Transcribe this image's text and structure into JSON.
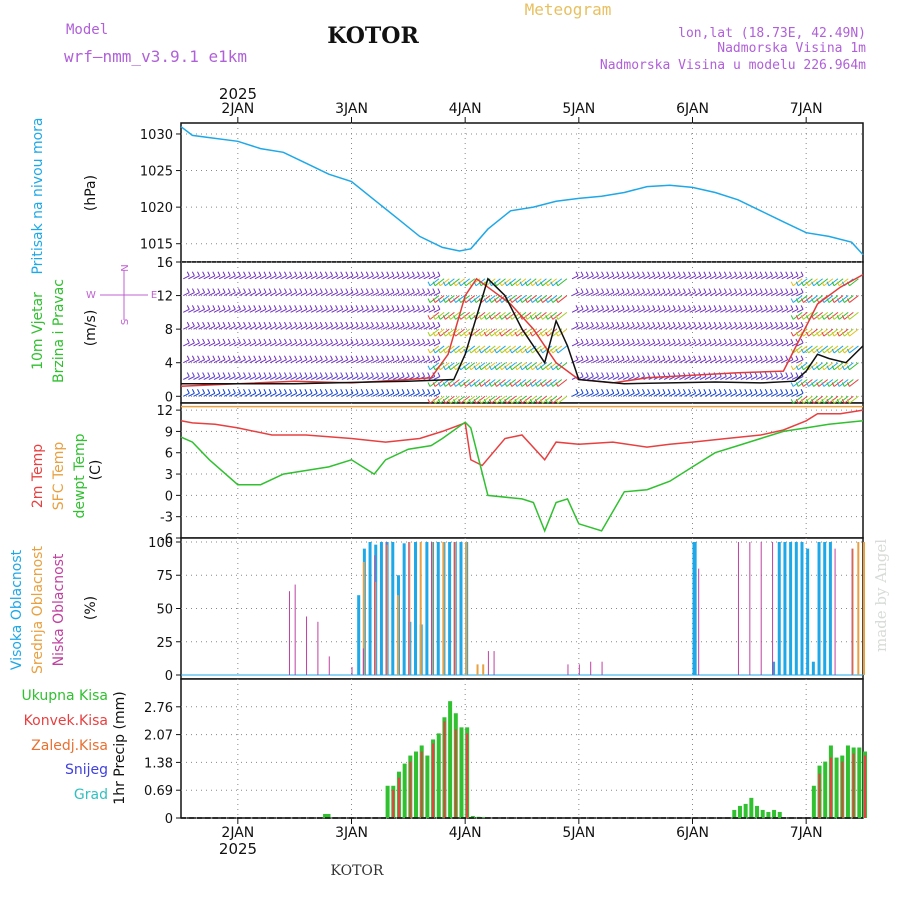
{
  "header": {
    "model_label": "Model",
    "model_name": "wrf—nmm_v3.9.1 e1km",
    "city": "KOTOR",
    "product": "Meteogram",
    "coords": "lon,lat (18.73E, 42.49N)",
    "elevation": "Nadmorska Visina 1m",
    "model_elevation": "Nadmorska Visina u modelu 226.964m",
    "watermark": "made by Angel",
    "footer_city": "KOTOR",
    "colors": {
      "title_purple": "#b060d8",
      "meteogram_orange": "#e8c060"
    }
  },
  "chart_data": [
    {
      "type": "line",
      "panel": "pressure",
      "side_labels": [
        "Pritisak na nivou mora"
      ],
      "unit": "(hPa)",
      "x_axis": {
        "year": "2025",
        "ticks": [
          "2JAN",
          "3JAN",
          "4JAN",
          "5JAN",
          "6JAN",
          "7JAN"
        ],
        "day_positions": [
          1,
          2,
          3,
          4,
          5,
          6
        ],
        "range": [
          0.5,
          6.5
        ]
      },
      "ylim": [
        1012.5,
        1031.5
      ],
      "yticks": [
        "1015",
        "1020",
        "1025",
        "1030"
      ],
      "grid": true,
      "series": [
        {
          "color": "#1ea8e8",
          "x": [
            0.5,
            0.6,
            0.75,
            1.0,
            1.2,
            1.4,
            1.6,
            1.8,
            2.0,
            2.2,
            2.4,
            2.6,
            2.8,
            2.95,
            3.05,
            3.2,
            3.4,
            3.6,
            3.8,
            4.0,
            4.2,
            4.4,
            4.6,
            4.8,
            5.0,
            5.2,
            5.4,
            5.6,
            5.8,
            6.0,
            6.2,
            6.4,
            6.5
          ],
          "y": [
            1031,
            1029.8,
            1029.5,
            1029,
            1028,
            1027.5,
            1026,
            1024.5,
            1023.5,
            1021,
            1018.5,
            1016,
            1014.5,
            1014,
            1014.3,
            1017,
            1019.5,
            1020,
            1020.8,
            1021.2,
            1021.5,
            1022,
            1022.8,
            1023,
            1022.7,
            1022,
            1021,
            1019.5,
            1018,
            1016.5,
            1016,
            1015.2,
            1013.5
          ]
        }
      ]
    },
    {
      "type": "line",
      "panel": "wind",
      "side_labels": [
        "10m Vjetar",
        "Brzina i Pravac"
      ],
      "unit": "(m/s)",
      "compass": {
        "n": "N",
        "s": "S",
        "e": "E",
        "w": "W"
      },
      "ylim": [
        -0.8,
        16
      ],
      "yticks": [
        "0",
        "4",
        "8",
        "12",
        "16"
      ],
      "grid": true,
      "barb_rows_value": [
        0,
        2,
        4,
        6,
        8,
        10,
        12,
        14
      ],
      "series": [
        {
          "color": "#e23a3a",
          "x": [
            0.5,
            1.0,
            1.5,
            2.0,
            2.5,
            2.7,
            2.85,
            3.0,
            3.1,
            3.2,
            3.4,
            3.6,
            3.7,
            3.8,
            4.0,
            4.3,
            4.6,
            5.0,
            5.4,
            5.8,
            5.95,
            6.1,
            6.3,
            6.5
          ],
          "y": [
            1.2,
            1.5,
            1.8,
            1.6,
            2.0,
            2.2,
            5,
            12,
            14,
            13,
            11,
            8,
            6,
            4,
            2,
            1.6,
            2.2,
            2.5,
            2.8,
            3,
            7,
            11,
            13,
            14.5
          ]
        },
        {
          "color": "#111111",
          "x": [
            0.5,
            1.5,
            2.5,
            2.9,
            3.0,
            3.2,
            3.35,
            3.5,
            3.6,
            3.7,
            3.8,
            3.9,
            4.0,
            4.4,
            4.8,
            5.2,
            5.6,
            5.9,
            6.0,
            6.1,
            6.2,
            6.35,
            6.5
          ],
          "y": [
            1.5,
            1.5,
            1.8,
            2,
            5,
            14,
            12,
            8,
            6,
            4,
            9,
            6,
            2,
            1.5,
            1.6,
            1.7,
            1.6,
            1.8,
            3,
            5,
            4.5,
            4,
            6
          ]
        }
      ]
    },
    {
      "type": "line",
      "panel": "temperature",
      "side_labels": [
        "2m Temp",
        "SFC Temp",
        "dewpt Temp"
      ],
      "unit": "(C)",
      "ylim": [
        -6,
        13
      ],
      "yticks": [
        "-6",
        "-3",
        "0",
        "3",
        "6",
        "9",
        "12"
      ],
      "grid": true,
      "series": [
        {
          "name": "2m Temp",
          "color": "#e84040",
          "x": [
            0.5,
            0.6,
            0.8,
            1.0,
            1.3,
            1.6,
            2.0,
            2.3,
            2.6,
            2.8,
            3.0,
            3.05,
            3.15,
            3.35,
            3.5,
            3.7,
            3.8,
            4.0,
            4.3,
            4.6,
            4.8,
            5.0,
            5.3,
            5.6,
            5.8,
            6.0,
            6.1,
            6.3,
            6.5
          ],
          "y": [
            10.5,
            10.2,
            10,
            9.5,
            8.5,
            8.5,
            8,
            7.5,
            8,
            9,
            10.2,
            5,
            4.2,
            8,
            8.5,
            5,
            7.5,
            7.2,
            7.5,
            6.8,
            7.2,
            7.5,
            8,
            8.5,
            9.2,
            10.5,
            11.5,
            11.5,
            12
          ]
        },
        {
          "name": "SFC Temp",
          "color": "#e8a040",
          "x": [
            0.5,
            6.5
          ],
          "y": [
            12.5,
            12.5
          ]
        },
        {
          "name": "dewpt Temp",
          "color": "#30c030",
          "x": [
            0.5,
            0.6,
            0.75,
            1.0,
            1.2,
            1.4,
            1.6,
            1.8,
            2.0,
            2.2,
            2.3,
            2.5,
            2.7,
            2.8,
            3.0,
            3.05,
            3.2,
            3.5,
            3.6,
            3.7,
            3.8,
            3.9,
            4.0,
            4.2,
            4.4,
            4.6,
            4.8,
            5.0,
            5.2,
            5.4,
            5.6,
            5.8,
            6.0,
            6.2,
            6.5
          ],
          "y": [
            8.2,
            7.5,
            5,
            1.5,
            1.5,
            3,
            3.5,
            4,
            5,
            3,
            5,
            6.5,
            7,
            8,
            10.3,
            9.5,
            0,
            -0.5,
            -1,
            -5,
            -1,
            -0.5,
            -4,
            -5,
            0.5,
            0.8,
            2,
            4,
            6,
            7,
            8,
            9,
            9.5,
            10,
            10.5
          ]
        }
      ]
    },
    {
      "type": "bar",
      "panel": "clouds",
      "side_labels": [
        "Visoka Oblacnost",
        "Srednja Oblacnost",
        "Niska Oblacnost"
      ],
      "unit": "(%)",
      "ylim": [
        -3,
        103
      ],
      "yticks": [
        "0",
        "25",
        "50",
        "75",
        "100"
      ],
      "grid": true,
      "series": [
        {
          "name": "Visoka Oblacnost",
          "color": "#1ea8e8",
          "width": 3,
          "x": [
            2.05,
            2.1,
            2.15,
            2.2,
            2.25,
            2.3,
            2.35,
            2.4,
            2.45,
            2.5,
            2.55,
            2.6,
            2.65,
            2.7,
            2.75,
            2.8,
            2.85,
            2.9,
            2.95,
            3.0,
            5.0,
            5.01,
            5.7,
            5.75,
            5.8,
            5.85,
            5.9,
            5.95,
            6.0,
            6.05,
            6.1,
            6.15,
            6.2
          ],
          "y": [
            60,
            95,
            100,
            98,
            100,
            100,
            100,
            75,
            99,
            40,
            100,
            38,
            100,
            100,
            100,
            100,
            100,
            100,
            100,
            100,
            100,
            100,
            10,
            100,
            100,
            100,
            100,
            100,
            95,
            10,
            100,
            100,
            100
          ]
        },
        {
          "name": "Srednja Oblacnost",
          "color": "#e8a040",
          "width": 2,
          "x": [
            2.1,
            2.2,
            2.3,
            2.4,
            2.5,
            2.6,
            2.7,
            2.8,
            2.9,
            3.0,
            3.1,
            3.15,
            6.4,
            6.45,
            6.5
          ],
          "y": [
            85,
            70,
            98,
            60,
            100,
            100,
            100,
            100,
            100,
            100,
            8,
            8,
            95,
            100,
            100
          ]
        },
        {
          "name": "Niska Oblacnost",
          "color": "#c040a0",
          "width": 1,
          "x": [
            1.45,
            1.5,
            1.6,
            1.7,
            1.8,
            2.0,
            2.1,
            2.2,
            2.3,
            2.5,
            2.7,
            2.9,
            3.2,
            3.25,
            3.9,
            4.0,
            4.1,
            4.2,
            5.05,
            5.4,
            5.5,
            5.6,
            5.7,
            6.25,
            6.4
          ],
          "y": [
            63,
            68,
            44,
            40,
            14,
            6,
            20,
            90,
            100,
            100,
            100,
            100,
            18,
            18,
            8,
            8,
            10,
            10,
            80,
            100,
            100,
            100,
            100,
            95,
            95
          ]
        }
      ]
    },
    {
      "type": "bar",
      "panel": "precipitation",
      "side_labels": [
        "Ukupna Kisa",
        "Konvek.Kisa",
        "Zaledj.Kisa",
        "Snijeg",
        "Grad"
      ],
      "side_label_colors": [
        "#30c030",
        "#e84040",
        "#e87030",
        "#4040e0",
        "#30c0c0"
      ],
      "unit": "1hr Precip (mm)",
      "ylim": [
        0,
        3.45
      ],
      "yticks": [
        "0",
        "0.69",
        "1.38",
        "2.07",
        "2.76"
      ],
      "grid": true,
      "bottom_ticks": [
        "2JAN",
        "3JAN",
        "4JAN",
        "5JAN",
        "6JAN",
        "7JAN"
      ],
      "bottom_year": "2025",
      "series": [
        {
          "name": "Ukupna Kisa",
          "color": "#30c030",
          "x": [
            1.75,
            1.78,
            2.3,
            2.35,
            2.4,
            2.45,
            2.5,
            2.55,
            2.6,
            2.65,
            2.7,
            2.75,
            2.8,
            2.85,
            2.9,
            2.95,
            3.0,
            3.05,
            3.1,
            3.15,
            5.35,
            5.4,
            5.45,
            5.5,
            5.55,
            5.6,
            5.65,
            5.7,
            5.75,
            6.05,
            6.1,
            6.15,
            6.2,
            6.25,
            6.3,
            6.35,
            6.4,
            6.45,
            6.5
          ],
          "y": [
            0.1,
            0.1,
            0.8,
            0.8,
            1.15,
            1.35,
            1.55,
            1.65,
            1.8,
            1.55,
            1.95,
            2.1,
            2.5,
            2.9,
            2.6,
            2.25,
            2.25,
            0.05,
            0.03,
            0.02,
            0.2,
            0.3,
            0.35,
            0.5,
            0.3,
            0.2,
            0.15,
            0.2,
            0.15,
            0.8,
            1.3,
            1.4,
            1.8,
            1.5,
            1.55,
            1.8,
            1.75,
            1.75,
            1.65
          ]
        },
        {
          "name": "Konvek.Kisa",
          "color": "#e84040",
          "x": [
            2.35,
            2.4,
            2.5,
            2.6,
            2.7,
            2.8,
            2.9,
            3.0,
            6.1,
            6.2,
            6.3,
            6.4,
            6.5
          ],
          "y": [
            0.7,
            1.0,
            1.4,
            1.65,
            1.85,
            2.4,
            2.2,
            2.1,
            1.1,
            1.5,
            1.4,
            1.6,
            1.55
          ]
        }
      ]
    }
  ]
}
